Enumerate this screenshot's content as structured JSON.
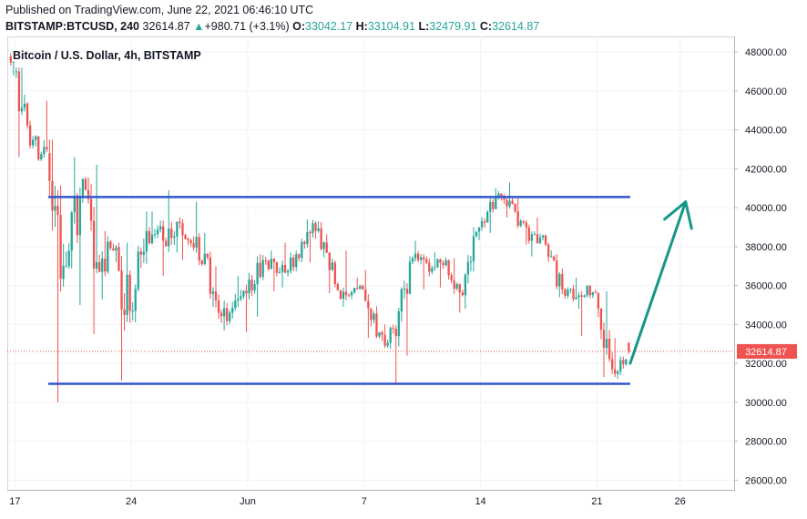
{
  "header": {
    "published": "Published on TradingView.com, June 22, 2021 06:46:10 UTC",
    "symbol": "BITSTAMP:BTCUSD, 240",
    "last": "32614.87",
    "change_arrow": "▲",
    "change": "+980.71 (+3.1%)",
    "o_label": "O:",
    "o_value": "33042.17",
    "h_label": "H:",
    "h_value": "33104.91",
    "l_label": "L:",
    "l_value": "32479.91",
    "c_label": "C:",
    "c_value": "32614.87"
  },
  "colors": {
    "up": "#26a69a",
    "down": "#ef5350",
    "range_line": "#3355cc",
    "arrow": "#16968a",
    "last_price_label": "#ef5350"
  },
  "chart_data": {
    "type": "candlestick",
    "title": "Bitcoin / U.S. Dollar, 4h, BITSTAMP",
    "ylim": [
      25500,
      48800
    ],
    "yticks": [
      "48000.00",
      "46000.00",
      "44000.00",
      "42000.00",
      "40000.00",
      "38000.00",
      "36000.00",
      "34000.00",
      "32000.00",
      "30000.00",
      "28000.00",
      "26000.00"
    ],
    "x_tick_labels": [
      {
        "date": "2021-05-17",
        "label": "17"
      },
      {
        "date": "2021-05-24",
        "label": "24"
      },
      {
        "date": "2021-05-31",
        "label": "Jun"
      },
      {
        "date": "2021-06-07",
        "label": "7"
      },
      {
        "date": "2021-06-14",
        "label": "14"
      },
      {
        "date": "2021-06-21",
        "label": "21"
      },
      {
        "date": "2021-06-26",
        "label": "26"
      }
    ],
    "x_range": [
      "2021-05-16T13:00",
      "2021-06-29T06:00"
    ],
    "last_price": "32614.87",
    "last_price_value": 32614.87,
    "support_line": {
      "price": 30950,
      "from": "2021-05-19",
      "to": "2021-06-23"
    },
    "resistance_line": {
      "price": 40550,
      "from": "2021-05-19",
      "to": "2021-06-23"
    },
    "projection_arrow": {
      "from": {
        "date": "2021-06-23T00:00",
        "price": 32000
      },
      "to": {
        "date": "2021-06-26T08:00",
        "price": 40300
      }
    },
    "daily_ohlc": [
      {
        "date": "2021-05-16",
        "o": 48200,
        "h": 48800,
        "l": 46800,
        "c": 47500
      },
      {
        "date": "2021-05-17",
        "o": 47000,
        "h": 47200,
        "l": 42600,
        "c": 43200
      },
      {
        "date": "2021-05-18",
        "o": 43200,
        "h": 45500,
        "l": 42400,
        "c": 43000
      },
      {
        "date": "2021-05-19",
        "o": 42800,
        "h": 43500,
        "l": 30000,
        "c": 37000
      },
      {
        "date": "2021-05-20",
        "o": 37000,
        "h": 42600,
        "l": 35000,
        "c": 40500
      },
      {
        "date": "2021-05-21",
        "o": 40500,
        "h": 42200,
        "l": 33500,
        "c": 37200
      },
      {
        "date": "2021-05-22",
        "o": 37200,
        "h": 38800,
        "l": 35300,
        "c": 37800
      },
      {
        "date": "2021-05-23",
        "o": 37800,
        "h": 38200,
        "l": 31100,
        "c": 34700
      },
      {
        "date": "2021-05-24",
        "o": 34700,
        "h": 39800,
        "l": 34100,
        "c": 38800
      },
      {
        "date": "2021-05-25",
        "o": 38800,
        "h": 39800,
        "l": 36500,
        "c": 38300
      },
      {
        "date": "2021-05-26",
        "o": 38300,
        "h": 40900,
        "l": 37700,
        "c": 39200
      },
      {
        "date": "2021-05-27",
        "o": 39200,
        "h": 40300,
        "l": 37300,
        "c": 38500
      },
      {
        "date": "2021-05-28",
        "o": 38500,
        "h": 38700,
        "l": 34900,
        "c": 35700
      },
      {
        "date": "2021-05-29",
        "o": 35700,
        "h": 37000,
        "l": 33700,
        "c": 34600
      },
      {
        "date": "2021-05-30",
        "o": 34600,
        "h": 36500,
        "l": 33600,
        "c": 35600
      },
      {
        "date": "2021-05-31",
        "o": 35600,
        "h": 37600,
        "l": 34400,
        "c": 37300
      },
      {
        "date": "2021-06-01",
        "o": 37300,
        "h": 37800,
        "l": 35700,
        "c": 36700
      },
      {
        "date": "2021-06-02",
        "o": 36700,
        "h": 38200,
        "l": 35900,
        "c": 37600
      },
      {
        "date": "2021-06-03",
        "o": 37600,
        "h": 39400,
        "l": 37200,
        "c": 39200
      },
      {
        "date": "2021-06-04",
        "o": 39200,
        "h": 39300,
        "l": 35600,
        "c": 36800
      },
      {
        "date": "2021-06-05",
        "o": 36800,
        "h": 37800,
        "l": 34900,
        "c": 35500
      },
      {
        "date": "2021-06-06",
        "o": 35500,
        "h": 36400,
        "l": 35300,
        "c": 35800
      },
      {
        "date": "2021-06-07",
        "o": 35800,
        "h": 36800,
        "l": 33300,
        "c": 33600
      },
      {
        "date": "2021-06-08",
        "o": 33600,
        "h": 34000,
        "l": 31000,
        "c": 33400
      },
      {
        "date": "2021-06-09",
        "o": 33400,
        "h": 37500,
        "l": 32400,
        "c": 37400
      },
      {
        "date": "2021-06-10",
        "o": 37400,
        "h": 38300,
        "l": 35800,
        "c": 36700
      },
      {
        "date": "2021-06-11",
        "o": 36700,
        "h": 37700,
        "l": 35900,
        "c": 37300
      },
      {
        "date": "2021-06-12",
        "o": 37300,
        "h": 37400,
        "l": 34600,
        "c": 35500
      },
      {
        "date": "2021-06-13",
        "o": 35500,
        "h": 39000,
        "l": 34800,
        "c": 39000
      },
      {
        "date": "2021-06-14",
        "o": 39000,
        "h": 41000,
        "l": 38700,
        "c": 40500
      },
      {
        "date": "2021-06-15",
        "o": 40500,
        "h": 41300,
        "l": 39500,
        "c": 40200
      },
      {
        "date": "2021-06-16",
        "o": 40200,
        "h": 40500,
        "l": 38100,
        "c": 38300
      },
      {
        "date": "2021-06-17",
        "o": 38300,
        "h": 39500,
        "l": 37500,
        "c": 38100
      },
      {
        "date": "2021-06-18",
        "o": 38100,
        "h": 38200,
        "l": 35400,
        "c": 35800
      },
      {
        "date": "2021-06-19",
        "o": 35800,
        "h": 36400,
        "l": 34800,
        "c": 35500
      },
      {
        "date": "2021-06-20",
        "o": 35500,
        "h": 36000,
        "l": 33400,
        "c": 35600
      },
      {
        "date": "2021-06-21",
        "o": 35600,
        "h": 35700,
        "l": 31300,
        "c": 31700
      },
      {
        "date": "2021-06-22",
        "o": 31700,
        "h": 33300,
        "l": 31200,
        "c": 32614.87
      }
    ]
  }
}
